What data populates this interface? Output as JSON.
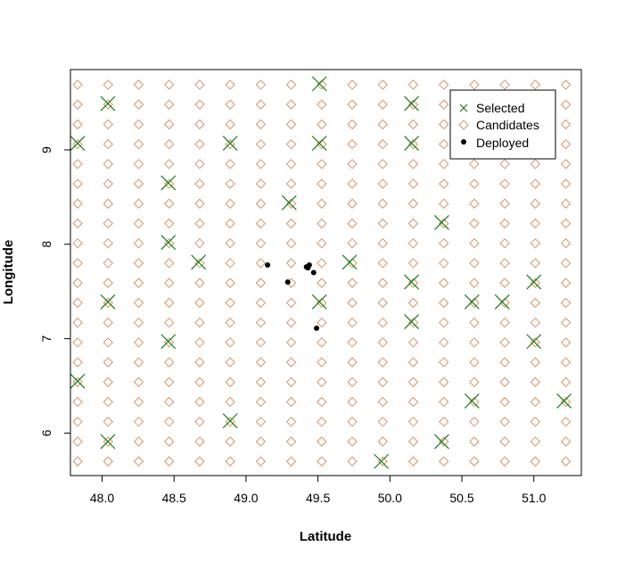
{
  "chart_data": {
    "type": "scatter",
    "xlabel": "Latitude",
    "ylabel": "Longitude",
    "xlim": [
      47.78,
      51.33
    ],
    "ylim": [
      5.55,
      9.85
    ],
    "x_ticks": [
      "48.0",
      "48.5",
      "49.0",
      "49.5",
      "50.0",
      "50.5",
      "51.0"
    ],
    "x_tick_values": [
      48.0,
      48.5,
      49.0,
      49.5,
      50.0,
      50.5,
      51.0
    ],
    "y_ticks": [
      "6",
      "7",
      "8",
      "9"
    ],
    "y_tick_values": [
      6,
      7,
      8,
      9
    ],
    "grid": false,
    "legend_position": "top-right",
    "candidate_grid": {
      "x_start": 47.83,
      "x_step": 0.212,
      "x_count": 17,
      "y_start": 5.7,
      "y_step": 0.21,
      "y_count": 20
    },
    "series": [
      {
        "name": "Selected",
        "marker": "x",
        "color": "#1a7a1a",
        "points": [
          [
            49.51,
            9.7
          ],
          [
            48.04,
            9.49
          ],
          [
            50.15,
            9.49
          ],
          [
            47.83,
            9.07
          ],
          [
            48.89,
            9.07
          ],
          [
            49.51,
            9.07
          ],
          [
            50.15,
            9.07
          ],
          [
            48.46,
            8.65
          ],
          [
            49.3,
            8.44
          ],
          [
            50.36,
            8.23
          ],
          [
            48.46,
            8.02
          ],
          [
            48.67,
            7.81
          ],
          [
            49.72,
            7.81
          ],
          [
            50.15,
            7.6
          ],
          [
            51.0,
            7.6
          ],
          [
            48.04,
            7.39
          ],
          [
            49.51,
            7.39
          ],
          [
            50.57,
            7.39
          ],
          [
            50.78,
            7.39
          ],
          [
            50.15,
            7.18
          ],
          [
            48.46,
            6.97
          ],
          [
            51.0,
            6.97
          ],
          [
            47.83,
            6.55
          ],
          [
            50.57,
            6.34
          ],
          [
            51.21,
            6.34
          ],
          [
            48.89,
            6.13
          ],
          [
            48.04,
            5.91
          ],
          [
            50.36,
            5.91
          ],
          [
            49.94,
            5.7
          ]
        ]
      },
      {
        "name": "Candidates",
        "marker": "diamond",
        "color": "#d4956a"
      },
      {
        "name": "Deployed",
        "marker": "dot",
        "color": "#000000",
        "points": [
          [
            49.15,
            7.78
          ],
          [
            49.42,
            7.76
          ],
          [
            49.44,
            7.78
          ],
          [
            49.43,
            7.75
          ],
          [
            49.47,
            7.7
          ],
          [
            49.29,
            7.6
          ],
          [
            49.49,
            7.11
          ]
        ]
      }
    ]
  }
}
